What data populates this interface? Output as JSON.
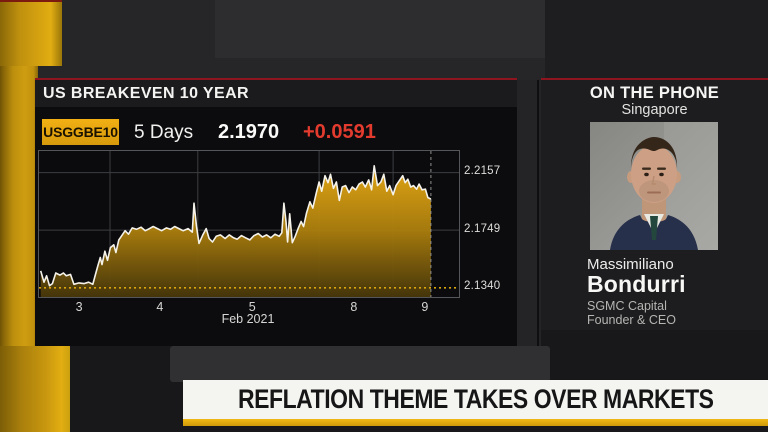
{
  "ticker_panel": {
    "title": "US BREAKEVEN 10 YEAR",
    "ticker": "USGGBE10",
    "range": "5 Days",
    "last": "2.1970",
    "change": "+0.0591"
  },
  "chart_data": {
    "type": "area",
    "title": "US BREAKEVEN 10 YEAR",
    "security": "USGGBE10",
    "period": "5 Days",
    "last_price": 2.197,
    "net_change": 0.0591,
    "x_axis": {
      "title": "Feb 2021",
      "labels": [
        {
          "text": "3",
          "f": 0.098
        },
        {
          "text": "4",
          "f": 0.29
        },
        {
          "text": "5",
          "f": 0.51
        },
        {
          "text": "8",
          "f": 0.752
        },
        {
          "text": "9",
          "f": 0.921
        }
      ],
      "day_boundaries_f": [
        0.169,
        0.378,
        0.667,
        0.843
      ]
    },
    "y_axis": {
      "ticks": [
        2.2157,
        2.1749,
        2.134
      ],
      "min": 2.1275,
      "max": 2.231,
      "dotted_level": 2.134
    },
    "last_x_f": 0.933,
    "grid": true,
    "legend": "none",
    "points": [
      [
        0.004,
        2.146
      ],
      [
        0.012,
        2.138
      ],
      [
        0.018,
        2.1425
      ],
      [
        0.025,
        2.1355
      ],
      [
        0.032,
        2.137
      ],
      [
        0.04,
        2.1445
      ],
      [
        0.05,
        2.143
      ],
      [
        0.058,
        2.1445
      ],
      [
        0.065,
        2.1425
      ],
      [
        0.075,
        2.1435
      ],
      [
        0.083,
        2.1365
      ],
      [
        0.095,
        2.1375
      ],
      [
        0.107,
        2.137
      ],
      [
        0.118,
        2.138
      ],
      [
        0.128,
        2.1365
      ],
      [
        0.133,
        2.142
      ],
      [
        0.14,
        2.1495
      ],
      [
        0.146,
        2.1555
      ],
      [
        0.15,
        2.1505
      ],
      [
        0.157,
        2.16
      ],
      [
        0.163,
        2.1535
      ],
      [
        0.17,
        2.1625
      ],
      [
        0.178,
        2.1645
      ],
      [
        0.183,
        2.159
      ],
      [
        0.19,
        2.168
      ],
      [
        0.196,
        2.1705
      ],
      [
        0.205,
        2.1745
      ],
      [
        0.213,
        2.172
      ],
      [
        0.222,
        2.1765
      ],
      [
        0.232,
        2.1755
      ],
      [
        0.243,
        2.177
      ],
      [
        0.253,
        2.1745
      ],
      [
        0.263,
        2.176
      ],
      [
        0.272,
        2.1775
      ],
      [
        0.282,
        2.176
      ],
      [
        0.292,
        2.1745
      ],
      [
        0.303,
        2.1765
      ],
      [
        0.313,
        2.1755
      ],
      [
        0.323,
        2.1775
      ],
      [
        0.333,
        2.176
      ],
      [
        0.343,
        2.1745
      ],
      [
        0.355,
        2.176
      ],
      [
        0.365,
        2.1735
      ],
      [
        0.369,
        2.194
      ],
      [
        0.375,
        2.1775
      ],
      [
        0.381,
        2.1655
      ],
      [
        0.39,
        2.1715
      ],
      [
        0.398,
        2.176
      ],
      [
        0.405,
        2.169
      ],
      [
        0.413,
        2.1665
      ],
      [
        0.422,
        2.1705
      ],
      [
        0.432,
        2.1715
      ],
      [
        0.443,
        2.169
      ],
      [
        0.453,
        2.1715
      ],
      [
        0.463,
        2.1695
      ],
      [
        0.472,
        2.1685
      ],
      [
        0.482,
        2.171
      ],
      [
        0.492,
        2.1695
      ],
      [
        0.502,
        2.168
      ],
      [
        0.512,
        2.171
      ],
      [
        0.522,
        2.1725
      ],
      [
        0.532,
        2.17
      ],
      [
        0.542,
        2.1715
      ],
      [
        0.552,
        2.1695
      ],
      [
        0.562,
        2.172
      ],
      [
        0.572,
        2.1705
      ],
      [
        0.578,
        2.173
      ],
      [
        0.583,
        2.194
      ],
      [
        0.588,
        2.181
      ],
      [
        0.592,
        2.1665
      ],
      [
        0.597,
        2.1865
      ],
      [
        0.603,
        2.166
      ],
      [
        0.61,
        2.1705
      ],
      [
        0.617,
        2.176
      ],
      [
        0.624,
        2.181
      ],
      [
        0.63,
        2.1775
      ],
      [
        0.637,
        2.187
      ],
      [
        0.645,
        2.195
      ],
      [
        0.652,
        2.1905
      ],
      [
        0.66,
        2.201
      ],
      [
        0.667,
        2.209
      ],
      [
        0.673,
        2.2025
      ],
      [
        0.681,
        2.2135
      ],
      [
        0.688,
        2.2085
      ],
      [
        0.694,
        2.2145
      ],
      [
        0.701,
        2.2045
      ],
      [
        0.708,
        2.209
      ],
      [
        0.715,
        2.196
      ],
      [
        0.722,
        2.2055
      ],
      [
        0.73,
        2.2065
      ],
      [
        0.738,
        2.2015
      ],
      [
        0.746,
        2.2055
      ],
      [
        0.754,
        2.2035
      ],
      [
        0.762,
        2.2075
      ],
      [
        0.77,
        2.209
      ],
      [
        0.777,
        2.2055
      ],
      [
        0.785,
        2.2105
      ],
      [
        0.792,
        2.2035
      ],
      [
        0.798,
        2.2205
      ],
      [
        0.806,
        2.2065
      ],
      [
        0.814,
        2.209
      ],
      [
        0.821,
        2.2145
      ],
      [
        0.828,
        2.2025
      ],
      [
        0.835,
        2.2065
      ],
      [
        0.843,
        2.2
      ],
      [
        0.85,
        2.2065
      ],
      [
        0.858,
        2.21
      ],
      [
        0.866,
        2.2135
      ],
      [
        0.872,
        2.2085
      ],
      [
        0.878,
        2.211
      ],
      [
        0.885,
        2.2055
      ],
      [
        0.892,
        2.2065
      ],
      [
        0.899,
        2.204
      ],
      [
        0.905,
        2.2075
      ],
      [
        0.912,
        2.2035
      ],
      [
        0.92,
        2.204
      ],
      [
        0.926,
        2.198
      ],
      [
        0.933,
        2.197
      ]
    ]
  },
  "guest_panel": {
    "kicker": "ON THE PHONE",
    "location": "Singapore",
    "first_name": "Massimiliano",
    "last_name": "Bondurri",
    "org": "SGMC Capital",
    "role": "Founder & CEO"
  },
  "banner": {
    "headline": "REFLATION THEME TAKES OVER MARKETS"
  },
  "colors": {
    "accent_amber": "#d9a50f",
    "chart_line": "#f5f2ea",
    "up_change": "#e43b2f",
    "red_rule": "#8e1520",
    "grid": "#3d3e41",
    "banner_bg": "#f4f4f1",
    "banner_underline": "#e9ab0e"
  }
}
